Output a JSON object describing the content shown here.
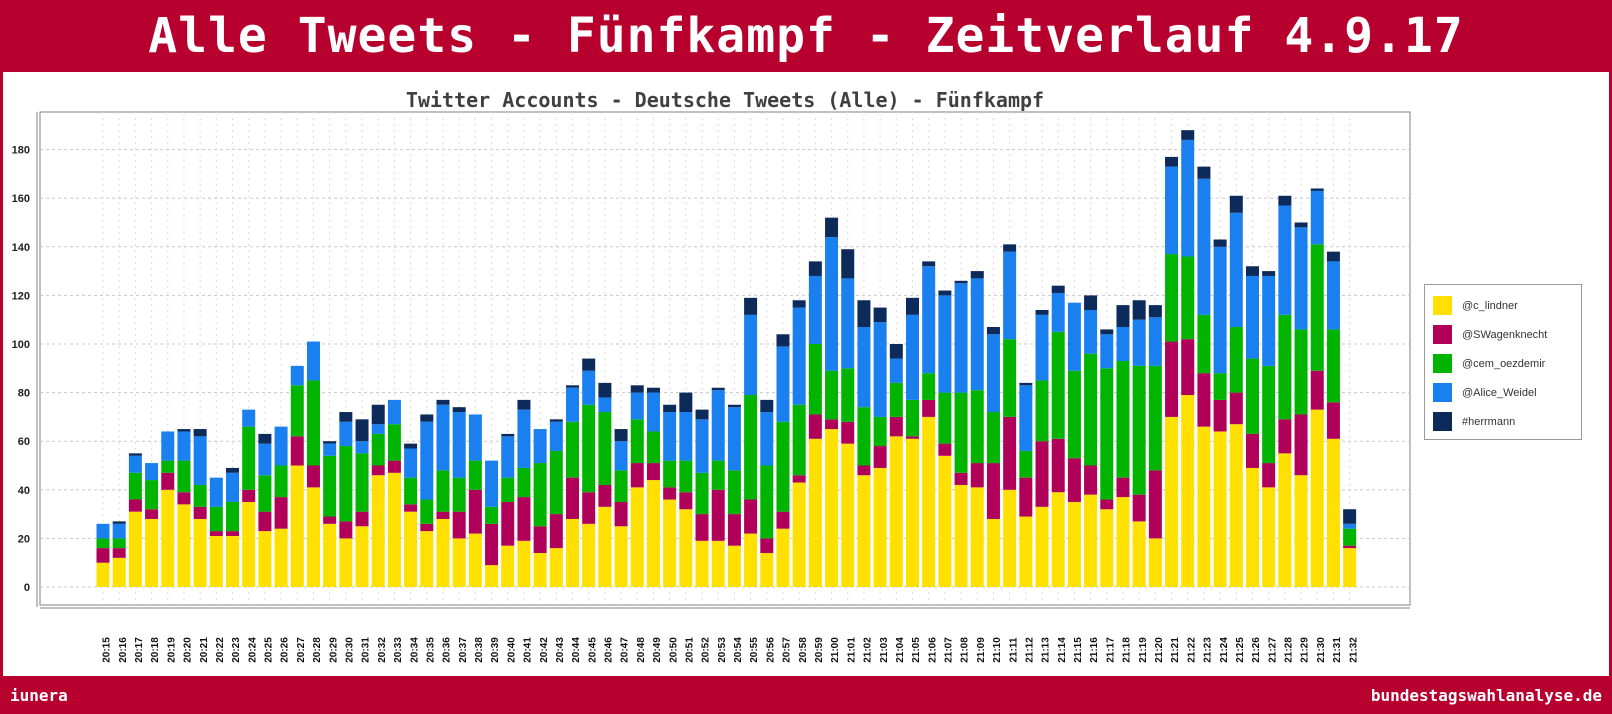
{
  "header": {
    "title": "Alle Tweets - Fünfkampf - Zeitverlauf 4.9.17"
  },
  "footer": {
    "left": "iunera",
    "right": "bundestagswahlanalyse.de"
  },
  "chart_data": {
    "type": "bar",
    "stacked": true,
    "title": "Twitter Accounts - Deutsche Tweets (Alle) - Fünfkampf",
    "xlabel": "",
    "ylabel": "",
    "ylim": [
      0,
      190
    ],
    "yticks": [
      0,
      20,
      40,
      60,
      80,
      100,
      120,
      140,
      160,
      180
    ],
    "grid": true,
    "legend_position": "right",
    "categories": [
      "20:15",
      "20:16",
      "20:17",
      "20:18",
      "20:19",
      "20:20",
      "20:21",
      "20:22",
      "20:23",
      "20:24",
      "20:25",
      "20:26",
      "20:27",
      "20:28",
      "20:29",
      "20:30",
      "20:31",
      "20:32",
      "20:33",
      "20:34",
      "20:35",
      "20:36",
      "20:37",
      "20:38",
      "20:39",
      "20:40",
      "20:41",
      "20:42",
      "20:43",
      "20:44",
      "20:45",
      "20:46",
      "20:47",
      "20:48",
      "20:49",
      "20:50",
      "20:51",
      "20:52",
      "20:53",
      "20:54",
      "20:55",
      "20:56",
      "20:57",
      "20:58",
      "20:59",
      "21:00",
      "21:01",
      "21:02",
      "21:03",
      "21:04",
      "21:05",
      "21:06",
      "21:07",
      "21:08",
      "21:09",
      "21:10",
      "21:11",
      "21:12",
      "21:13",
      "21:14",
      "21:15",
      "21:16",
      "21:17",
      "21:18",
      "21:19",
      "21:20",
      "21:21",
      "21:22",
      "21:23",
      "21:24",
      "21:25",
      "21:26",
      "21:27",
      "21:28",
      "21:29",
      "21:30",
      "21:31",
      "21:32"
    ],
    "series": [
      {
        "name": "@c_lindner",
        "color": "#ffe000",
        "values": [
          10,
          12,
          31,
          28,
          40,
          34,
          28,
          21,
          21,
          35,
          23,
          24,
          50,
          41,
          26,
          20,
          25,
          46,
          47,
          31,
          23,
          28,
          20,
          22,
          9,
          17,
          19,
          14,
          16,
          28,
          26,
          33,
          25,
          41,
          44,
          36,
          32,
          19,
          19,
          17,
          22,
          14,
          24,
          43,
          61,
          65,
          59,
          46,
          49,
          62,
          61,
          70,
          54,
          42,
          41,
          28,
          40,
          29,
          33,
          39,
          35,
          38,
          32,
          37,
          27,
          20,
          70,
          79,
          66,
          64,
          67,
          49,
          41,
          55,
          46,
          73,
          61,
          16
        ]
      },
      {
        "name": "@SWagenknecht",
        "color": "#b0005a",
        "values": [
          6,
          4,
          5,
          4,
          7,
          5,
          5,
          2,
          2,
          5,
          8,
          13,
          12,
          9,
          3,
          7,
          6,
          4,
          5,
          3,
          3,
          3,
          11,
          18,
          17,
          18,
          18,
          11,
          14,
          17,
          13,
          9,
          10,
          10,
          7,
          5,
          7,
          11,
          21,
          13,
          14,
          6,
          7,
          3,
          10,
          4,
          9,
          4,
          9,
          8,
          1,
          7,
          5,
          5,
          10,
          23,
          30,
          16,
          27,
          22,
          18,
          12,
          4,
          8,
          11,
          28,
          31,
          23,
          22,
          13,
          13,
          14,
          10,
          14,
          25,
          16,
          15,
          1
        ]
      },
      {
        "name": "@cem_oezdemir",
        "color": "#00b400",
        "values": [
          4,
          4,
          11,
          12,
          5,
          13,
          9,
          10,
          12,
          26,
          15,
          13,
          21,
          35,
          25,
          31,
          24,
          13,
          15,
          11,
          10,
          17,
          14,
          12,
          7,
          10,
          12,
          26,
          26,
          23,
          36,
          30,
          13,
          18,
          13,
          11,
          13,
          17,
          12,
          18,
          43,
          30,
          37,
          29,
          29,
          20,
          22,
          24,
          12,
          14,
          15,
          11,
          21,
          33,
          30,
          21,
          32,
          11,
          25,
          44,
          36,
          46,
          54,
          48,
          53,
          43,
          36,
          34,
          24,
          11,
          27,
          31,
          40,
          43,
          35,
          52,
          30,
          7
        ]
      },
      {
        "name": "@Alice_Weidel",
        "color": "#1a80f0",
        "values": [
          6,
          6,
          7,
          7,
          12,
          12,
          20,
          12,
          12,
          7,
          13,
          16,
          8,
          16,
          5,
          10,
          5,
          4,
          10,
          12,
          32,
          27,
          27,
          19,
          19,
          17,
          24,
          14,
          12,
          14,
          14,
          6,
          12,
          11,
          16,
          20,
          20,
          22,
          29,
          26,
          33,
          22,
          31,
          40,
          28,
          55,
          37,
          33,
          39,
          10,
          35,
          44,
          40,
          45,
          46,
          32,
          36,
          27,
          27,
          16,
          28,
          18,
          14,
          14,
          19,
          20,
          36,
          48,
          56,
          52,
          47,
          34,
          37,
          45,
          42,
          22,
          28,
          2
        ]
      },
      {
        "name": "#herrmann",
        "color": "#0c2a5a",
        "values": [
          0,
          1,
          1,
          0,
          0,
          1,
          3,
          0,
          2,
          0,
          4,
          0,
          0,
          0,
          1,
          4,
          9,
          8,
          0,
          2,
          3,
          2,
          2,
          0,
          0,
          1,
          4,
          0,
          1,
          1,
          5,
          6,
          5,
          3,
          2,
          3,
          8,
          4,
          1,
          1,
          7,
          5,
          5,
          3,
          6,
          8,
          12,
          11,
          6,
          6,
          7,
          2,
          2,
          1,
          3,
          3,
          3,
          1,
          2,
          3,
          0,
          6,
          2,
          9,
          8,
          5,
          4,
          4,
          5,
          3,
          7,
          4,
          2,
          4,
          2,
          1,
          4,
          6
        ]
      }
    ]
  }
}
